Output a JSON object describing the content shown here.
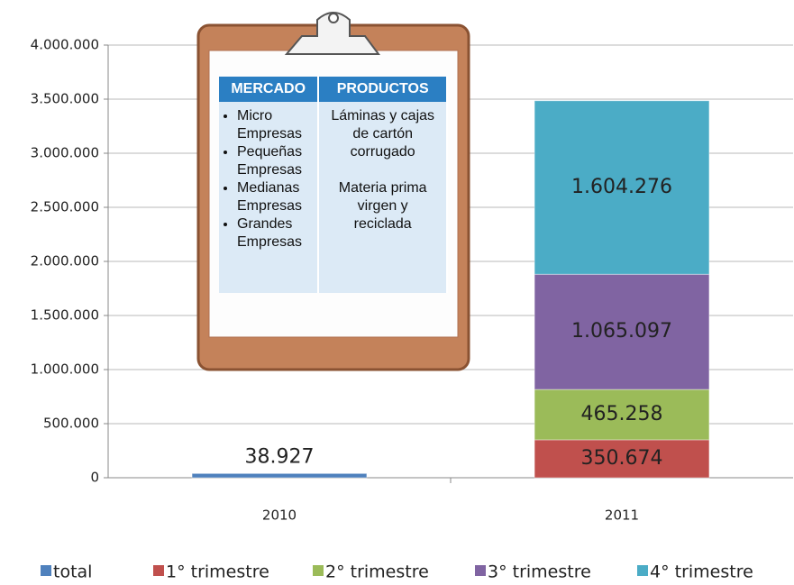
{
  "chart_data": {
    "type": "stacked_bar",
    "categories": [
      "2010",
      "2011"
    ],
    "series": [
      {
        "name": "total",
        "color": "#4f81bd",
        "values": [
          38927,
          null
        ],
        "value_labels": [
          "38.927",
          null
        ]
      },
      {
        "name": "1° trimestre",
        "color": "#c0504d",
        "values": [
          null,
          350674
        ],
        "value_labels": [
          null,
          "350.674"
        ]
      },
      {
        "name": "2° trimestre",
        "color": "#9bbb59",
        "values": [
          null,
          465258
        ],
        "value_labels": [
          null,
          "465.258"
        ]
      },
      {
        "name": "3° trimestre",
        "color": "#8064a2",
        "values": [
          null,
          1065097
        ],
        "value_labels": [
          null,
          "1.065.097"
        ]
      },
      {
        "name": "4° trimestre",
        "color": "#4bacc6",
        "values": [
          null,
          1604276
        ],
        "value_labels": [
          null,
          "1.604.276"
        ]
      }
    ],
    "ylim": [
      0,
      4000000
    ],
    "yticks": [
      0,
      {
        "value": 500000,
        "label": "500.000"
      },
      {
        "value": 1000000,
        "label": "1.000.000"
      },
      {
        "value": 1500000,
        "label": "1.500.000"
      },
      {
        "value": 2000000,
        "label": "2.000.000"
      },
      {
        "value": 2500000,
        "label": "2.500.000"
      },
      {
        "value": 3000000,
        "label": "3.000.000"
      },
      {
        "value": 3500000,
        "label": "3.500.000"
      },
      {
        "value": 4000000,
        "label": "4.000.000"
      }
    ],
    "grid": true,
    "legend": "bottom",
    "clipboard": {
      "headers": [
        "MERCADO",
        "PRODUCTOS"
      ],
      "market": [
        "Micro Empresas",
        "Pequeñas Empresas",
        "Medianas Empresas",
        "Grandes Empresas"
      ],
      "products": [
        "Láminas y cajas de cartón corrugado",
        "Materia prima virgen y reciclada"
      ]
    }
  }
}
